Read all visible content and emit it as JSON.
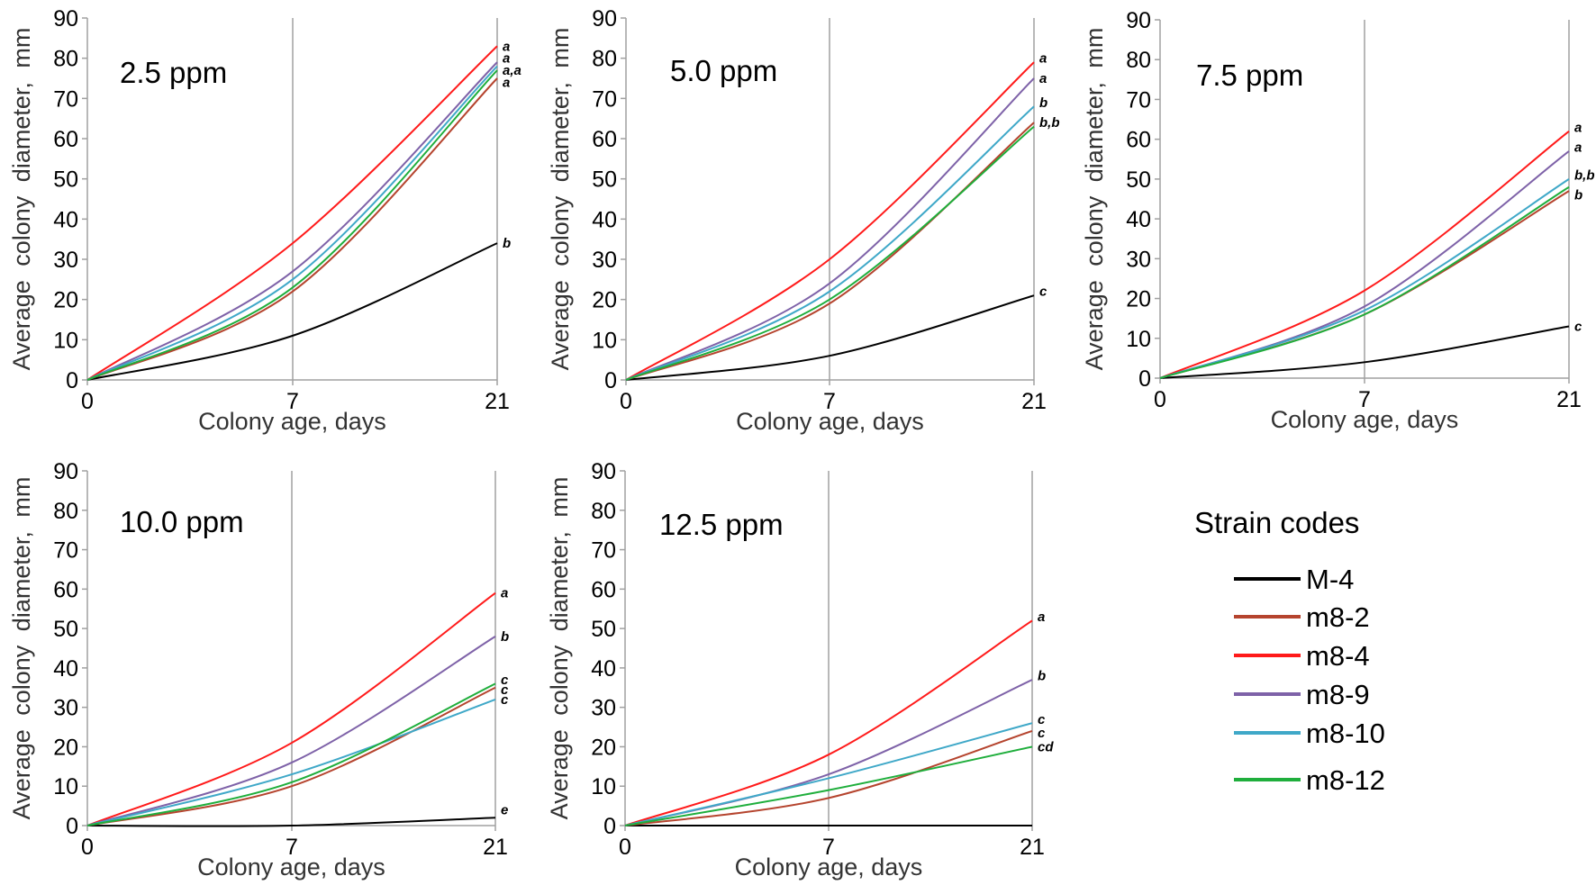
{
  "chart_data": [
    {
      "type": "line",
      "title": "2.5 ppm",
      "xlabel": "Colony age, days",
      "ylabel": "Average colony diameter, mm",
      "x": [
        0,
        7,
        21
      ],
      "x_ticks": [
        "0",
        "7",
        "21"
      ],
      "y_ticks": [
        "0",
        "10",
        "20",
        "30",
        "40",
        "50",
        "60",
        "70",
        "80",
        "90"
      ],
      "ylim": [
        0,
        90
      ],
      "grid": "vertical lines at 7 and 21",
      "series": [
        {
          "name": "M-4",
          "values": [
            0,
            11,
            34
          ]
        },
        {
          "name": "m8-2",
          "values": [
            0,
            22,
            75
          ]
        },
        {
          "name": "m8-4",
          "values": [
            0,
            34,
            83
          ]
        },
        {
          "name": "m8-9",
          "values": [
            0,
            27,
            79
          ]
        },
        {
          "name": "m8-10",
          "values": [
            0,
            25,
            78
          ]
        },
        {
          "name": "m8-12",
          "values": [
            0,
            23,
            77
          ]
        }
      ],
      "annotations": [
        {
          "text": "a",
          "x": 21,
          "y": 83
        },
        {
          "text": "a",
          "x": 21,
          "y": 80
        },
        {
          "text": "a,a",
          "x": 21,
          "y": 77
        },
        {
          "text": "a",
          "x": 21,
          "y": 74
        },
        {
          "text": "b",
          "x": 21,
          "y": 34
        }
      ]
    },
    {
      "type": "line",
      "title": "5.0 ppm",
      "xlabel": "Colony age, days",
      "ylabel": "Average colony diameter, mm",
      "x": [
        0,
        7,
        21
      ],
      "x_ticks": [
        "0",
        "7",
        "21"
      ],
      "y_ticks": [
        "0",
        "10",
        "20",
        "30",
        "40",
        "50",
        "60",
        "70",
        "80",
        "90"
      ],
      "ylim": [
        0,
        90
      ],
      "grid": "vertical lines at 7 and 21",
      "series": [
        {
          "name": "M-4",
          "values": [
            0,
            6,
            21
          ]
        },
        {
          "name": "m8-2",
          "values": [
            0,
            19,
            64
          ]
        },
        {
          "name": "m8-4",
          "values": [
            0,
            30,
            79
          ]
        },
        {
          "name": "m8-9",
          "values": [
            0,
            24,
            75
          ]
        },
        {
          "name": "m8-10",
          "values": [
            0,
            22,
            68
          ]
        },
        {
          "name": "m8-12",
          "values": [
            0,
            20,
            63
          ]
        }
      ],
      "annotations": [
        {
          "text": "a",
          "x": 21,
          "y": 80
        },
        {
          "text": "a",
          "x": 21,
          "y": 75
        },
        {
          "text": "b",
          "x": 21,
          "y": 69
        },
        {
          "text": "b,b",
          "x": 21,
          "y": 64
        },
        {
          "text": "c",
          "x": 21,
          "y": 22
        }
      ]
    },
    {
      "type": "line",
      "title": "7.5 ppm",
      "xlabel": "Colony age, days",
      "ylabel": "Average colony diameter, mm",
      "x": [
        0,
        7,
        21
      ],
      "x_ticks": [
        "0",
        "7",
        "21"
      ],
      "y_ticks": [
        "0",
        "10",
        "20",
        "30",
        "40",
        "50",
        "60",
        "70",
        "80",
        "90"
      ],
      "ylim": [
        0,
        90
      ],
      "grid": "vertical lines at 7 and 21",
      "series": [
        {
          "name": "M-4",
          "values": [
            0,
            4,
            13
          ]
        },
        {
          "name": "m8-2",
          "values": [
            0,
            16,
            47
          ]
        },
        {
          "name": "m8-4",
          "values": [
            0,
            22,
            62
          ]
        },
        {
          "name": "m8-9",
          "values": [
            0,
            18,
            57
          ]
        },
        {
          "name": "m8-10",
          "values": [
            0,
            17,
            50
          ]
        },
        {
          "name": "m8-12",
          "values": [
            0,
            16,
            48
          ]
        }
      ],
      "annotations": [
        {
          "text": "a",
          "x": 21,
          "y": 63
        },
        {
          "text": "a",
          "x": 21,
          "y": 58
        },
        {
          "text": "b,b",
          "x": 21,
          "y": 51
        },
        {
          "text": "b",
          "x": 21,
          "y": 46
        },
        {
          "text": "c",
          "x": 21,
          "y": 13
        }
      ]
    },
    {
      "type": "line",
      "title": "10.0 ppm",
      "xlabel": "Colony age, days",
      "ylabel": "Average colony diameter, mm",
      "x": [
        0,
        7,
        21
      ],
      "x_ticks": [
        "0",
        "7",
        "21"
      ],
      "y_ticks": [
        "0",
        "10",
        "20",
        "30",
        "40",
        "50",
        "60",
        "70",
        "80",
        "90"
      ],
      "ylim": [
        0,
        90
      ],
      "grid": "vertical lines at 7 and 21",
      "series": [
        {
          "name": "M-4",
          "values": [
            0,
            0,
            2
          ]
        },
        {
          "name": "m8-2",
          "values": [
            0,
            10,
            35
          ]
        },
        {
          "name": "m8-4",
          "values": [
            0,
            21,
            59
          ]
        },
        {
          "name": "m8-9",
          "values": [
            0,
            16,
            48
          ]
        },
        {
          "name": "m8-10",
          "values": [
            0,
            13,
            32
          ]
        },
        {
          "name": "m8-12",
          "values": [
            0,
            11,
            36
          ]
        }
      ],
      "annotations": [
        {
          "text": "a",
          "x": 21,
          "y": 59
        },
        {
          "text": "b",
          "x": 21,
          "y": 48
        },
        {
          "text": "c",
          "x": 21,
          "y": 37
        },
        {
          "text": "c",
          "x": 21,
          "y": 34.5
        },
        {
          "text": "c",
          "x": 21,
          "y": 32
        },
        {
          "text": "e",
          "x": 21,
          "y": 4
        }
      ]
    },
    {
      "type": "line",
      "title": "12.5 ppm",
      "xlabel": "Colony age, days",
      "ylabel": "Average colony diameter, mm",
      "x": [
        0,
        7,
        21
      ],
      "x_ticks": [
        "0",
        "7",
        "21"
      ],
      "y_ticks": [
        "0",
        "10",
        "20",
        "30",
        "40",
        "50",
        "60",
        "70",
        "80",
        "90"
      ],
      "ylim": [
        0,
        90
      ],
      "grid": "vertical lines at 7 and 21",
      "series": [
        {
          "name": "M-4",
          "values": [
            0,
            0,
            0
          ]
        },
        {
          "name": "m8-2",
          "values": [
            0,
            7,
            24
          ]
        },
        {
          "name": "m8-4",
          "values": [
            0,
            18,
            52
          ]
        },
        {
          "name": "m8-9",
          "values": [
            0,
            13,
            37
          ]
        },
        {
          "name": "m8-10",
          "values": [
            0,
            12,
            26
          ]
        },
        {
          "name": "m8-12",
          "values": [
            0,
            9,
            20
          ]
        }
      ],
      "annotations": [
        {
          "text": "a",
          "x": 21,
          "y": 53
        },
        {
          "text": "b",
          "x": 21,
          "y": 38
        },
        {
          "text": "c",
          "x": 21,
          "y": 27
        },
        {
          "text": "c",
          "x": 21,
          "y": 23.5
        },
        {
          "text": "cd",
          "x": 21,
          "y": 20
        }
      ]
    }
  ],
  "legend": {
    "title": "Strain codes",
    "items": [
      {
        "name": "M-4",
        "color": "#000000"
      },
      {
        "name": "m8-2",
        "color": "#b5442e"
      },
      {
        "name": "m8-4",
        "color": "#ff1a1a"
      },
      {
        "name": "m8-9",
        "color": "#7e62a8"
      },
      {
        "name": "m8-10",
        "color": "#3fa8c8"
      },
      {
        "name": "m8-12",
        "color": "#1fae3c"
      }
    ]
  }
}
